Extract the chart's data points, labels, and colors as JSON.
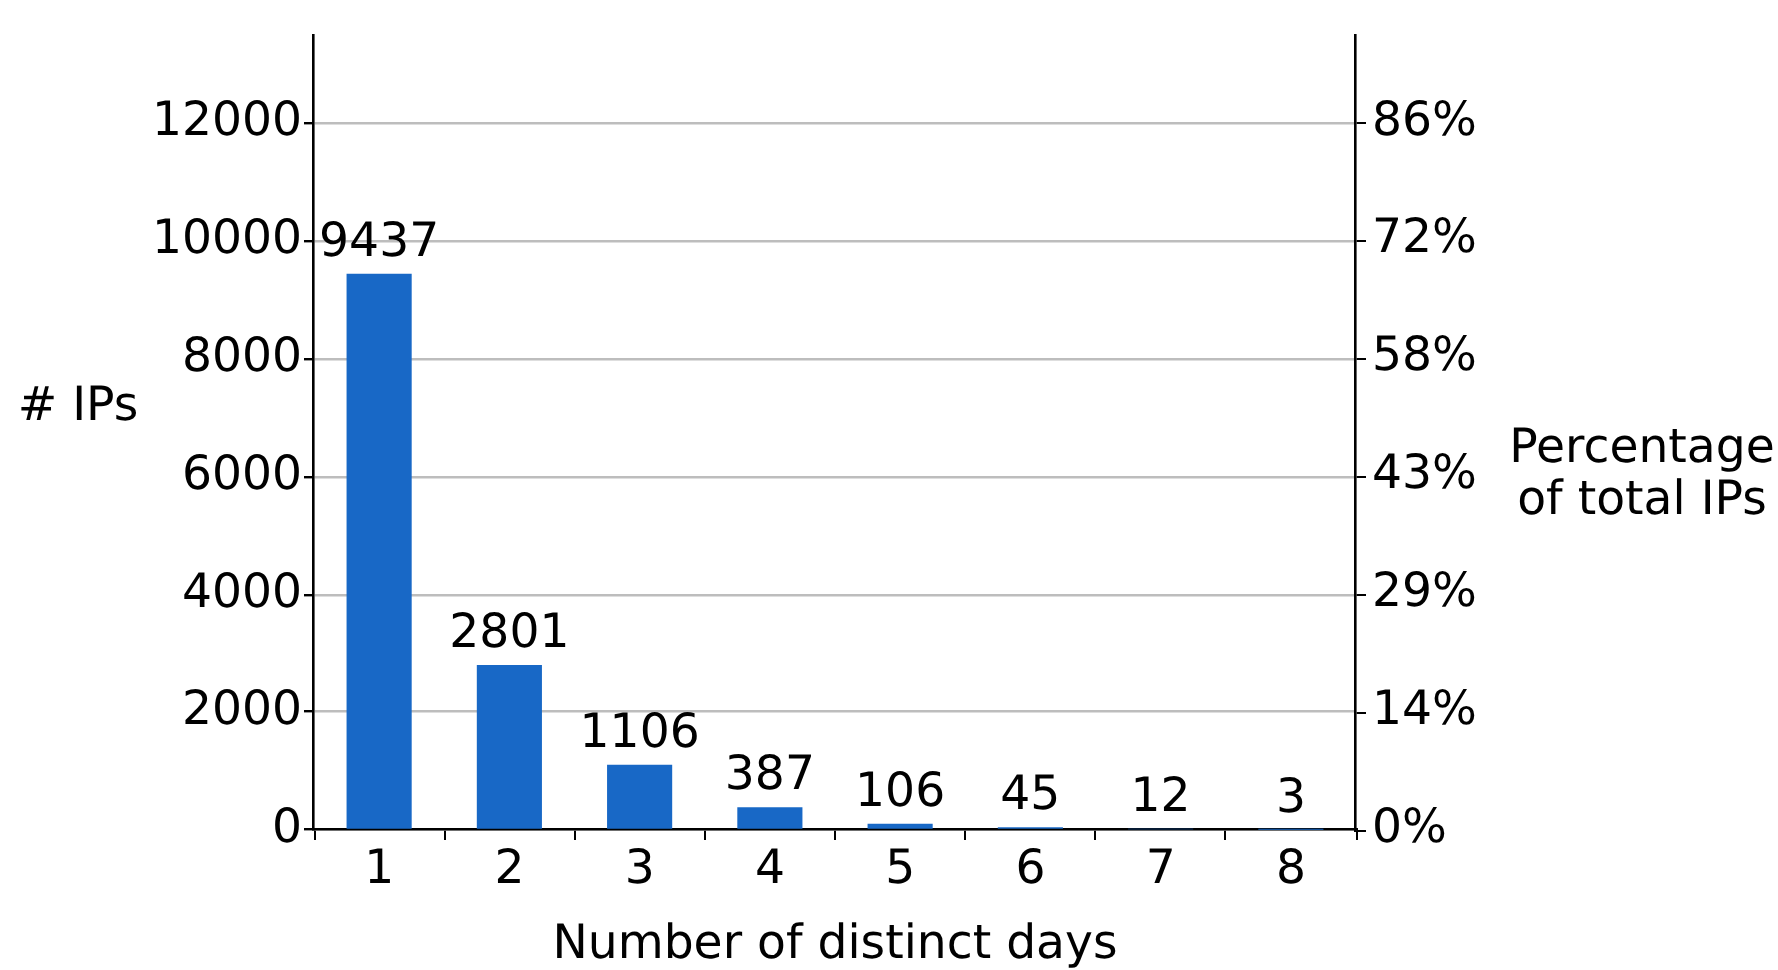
{
  "chart_data": {
    "type": "bar",
    "xlabel": "Number of distinct days",
    "ylabel": "# IPs",
    "y2label": "Percentage of total IPs",
    "categories": [
      "1",
      "2",
      "3",
      "4",
      "5",
      "6",
      "7",
      "8"
    ],
    "values": [
      9437,
      2801,
      1106,
      387,
      106,
      45,
      12,
      3
    ],
    "color": "#1868c6",
    "ylim": [
      0,
      13500
    ],
    "yticks": [
      0,
      2000,
      4000,
      6000,
      8000,
      10000,
      12000
    ],
    "y2lim": [
      0,
      97.1
    ],
    "y2ticks": [
      {
        "value": 0,
        "label": "0%"
      },
      {
        "value": 14.4,
        "label": "14%"
      },
      {
        "value": 28.8,
        "label": "29%"
      },
      {
        "value": 43.2,
        "label": "43%"
      },
      {
        "value": 57.6,
        "label": "58%"
      },
      {
        "value": 72,
        "label": "72%"
      },
      {
        "value": 86.3,
        "label": "86%"
      }
    ],
    "grid": "y",
    "data_labels": true
  }
}
